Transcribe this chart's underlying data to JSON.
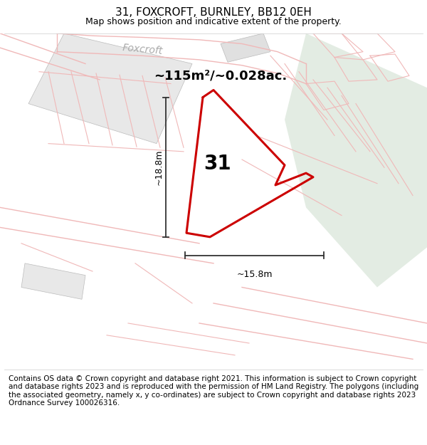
{
  "title": "31, FOXCROFT, BURNLEY, BB12 0EH",
  "subtitle": "Map shows position and indicative extent of the property.",
  "area_text": "~115m²/~0.028ac.",
  "dim_vertical": "~18.8m",
  "dim_horizontal": "~15.8m",
  "property_number": "31",
  "footer": "Contains OS data © Crown copyright and database right 2021. This information is subject to Crown copyright and database rights 2023 and is reproduced with the permission of HM Land Registry. The polygons (including the associated geometry, namely x, y co-ordinates) are subject to Crown copyright and database rights 2023 Ordnance Survey 100026316.",
  "bg_color": "#f8f7f5",
  "map_bg": "#f8f7f5",
  "road_color": "#f0b8b8",
  "main_plot_color": "#cc0000",
  "neighbor_fill": "#e6e6e6",
  "green_area_color": "#d5e8d5",
  "foxcroft_label": "Foxcroft",
  "title_fontsize": 11,
  "subtitle_fontsize": 9,
  "footer_fontsize": 7.5
}
